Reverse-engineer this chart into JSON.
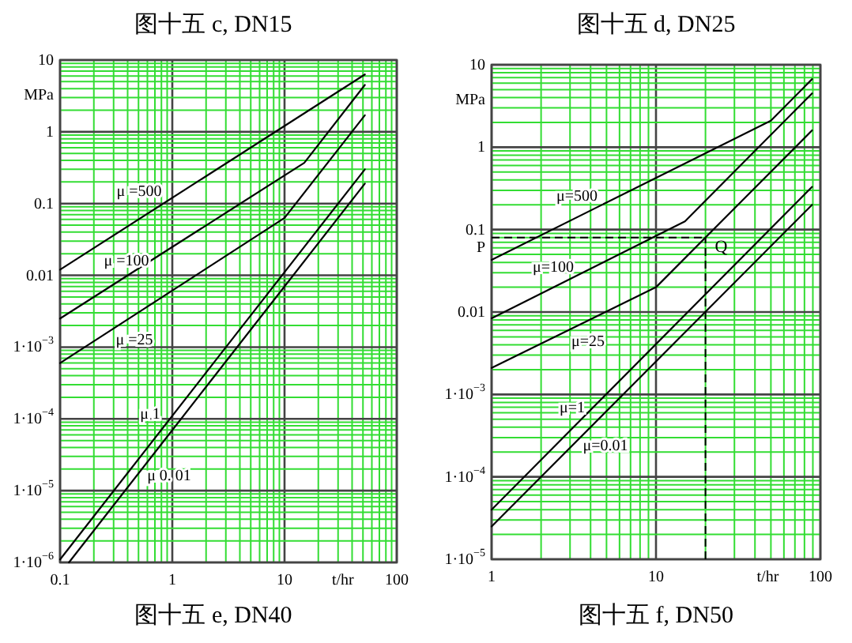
{
  "chart_data": [
    {
      "type": "line",
      "title": "图十五 c, DN15",
      "xlabel": "t/hr",
      "ylabel": "MPa",
      "log": "xy",
      "grid": true,
      "line_style": "solid",
      "xlim": [
        0.1,
        100
      ],
      "ylim": [
        1e-06,
        10
      ],
      "xticks": [
        0.1,
        {
          "value": 0.2,
          "label": null
        },
        {
          "value": 0.3,
          "label": null
        },
        {
          "value": 0.4,
          "label": null
        },
        {
          "value": 0.5,
          "label": null
        },
        {
          "value": 0.6,
          "label": null
        },
        {
          "value": 0.7,
          "label": null
        },
        {
          "value": 0.8,
          "label": null
        },
        {
          "value": 0.9,
          "label": null
        },
        1,
        {
          "value": 2,
          "label": null
        },
        {
          "value": 3,
          "label": null
        },
        {
          "value": 4,
          "label": null
        },
        {
          "value": 5,
          "label": null
        },
        {
          "value": 6,
          "label": null
        },
        {
          "value": 7,
          "label": null
        },
        {
          "value": 8,
          "label": null
        },
        {
          "value": 9,
          "label": null
        },
        10,
        {
          "value": 20,
          "label": null
        },
        {
          "value": 30,
          "label": null
        },
        {
          "value": 40,
          "label": null
        },
        {
          "value": 50,
          "label": null
        },
        {
          "value": 60,
          "label": null
        },
        {
          "value": 70,
          "label": null
        },
        {
          "value": 80,
          "label": null
        },
        {
          "value": 90,
          "label": null
        },
        100
      ],
      "yticks": [
        {
          "value": 1e-06,
          "label": "1·10$^{−6}$"
        },
        {
          "value": 2e-06,
          "label": null
        },
        {
          "value": 3e-06,
          "label": null
        },
        {
          "value": 4e-06,
          "label": null
        },
        {
          "value": 5e-06,
          "label": null
        },
        {
          "value": 6e-06,
          "label": null
        },
        {
          "value": 7e-06,
          "label": null
        },
        {
          "value": 8e-06,
          "label": null
        },
        {
          "value": 9e-06,
          "label": null
        },
        {
          "value": 1e-05,
          "label": "1·10$^{−5}$"
        },
        {
          "value": 2e-05,
          "label": null
        },
        {
          "value": 3e-05,
          "label": null
        },
        {
          "value": 4e-05,
          "label": null
        },
        {
          "value": 5e-05,
          "label": null
        },
        {
          "value": 6e-05,
          "label": null
        },
        {
          "value": 7e-05,
          "label": null
        },
        {
          "value": 8e-05,
          "label": null
        },
        {
          "value": 9e-05,
          "label": null
        },
        {
          "value": 0.0001,
          "label": "1·10$^{−4}$"
        },
        {
          "value": 0.0002,
          "label": null
        },
        {
          "value": 0.0003,
          "label": null
        },
        {
          "value": 0.0004,
          "label": null
        },
        {
          "value": 0.0005,
          "label": null
        },
        {
          "value": 0.0006,
          "label": null
        },
        {
          "value": 0.0007,
          "label": null
        },
        {
          "value": 0.0008,
          "label": null
        },
        {
          "value": 0.0009,
          "label": null
        },
        {
          "value": 0.001,
          "label": "1·10$^{−3}$"
        },
        {
          "value": 0.002,
          "label": null
        },
        {
          "value": 0.003,
          "label": null
        },
        {
          "value": 0.004,
          "label": null
        },
        {
          "value": 0.005,
          "label": null
        },
        {
          "value": 0.006,
          "label": null
        },
        {
          "value": 0.007,
          "label": null
        },
        {
          "value": 0.008,
          "label": null
        },
        {
          "value": 0.009,
          "label": null
        },
        0.01,
        {
          "value": 0.02,
          "label": null
        },
        {
          "value": 0.03,
          "label": null
        },
        {
          "value": 0.04,
          "label": null
        },
        {
          "value": 0.05,
          "label": null
        },
        {
          "value": 0.06,
          "label": null
        },
        {
          "value": 0.07,
          "label": null
        },
        {
          "value": 0.08,
          "label": null
        },
        {
          "value": 0.09,
          "label": null
        },
        0.1,
        {
          "value": 0.2,
          "label": null
        },
        {
          "value": 0.3,
          "label": null
        },
        {
          "value": 0.4,
          "label": null
        },
        {
          "value": 0.5,
          "label": null
        },
        {
          "value": 0.6,
          "label": null
        },
        {
          "value": 0.7,
          "label": null
        },
        {
          "value": 0.8,
          "label": null
        },
        {
          "value": 0.9,
          "label": null
        },
        1,
        {
          "value": 2,
          "label": null
        },
        {
          "value": 3,
          "label": null
        },
        {
          "value": 4,
          "label": null
        },
        {
          "value": 5,
          "label": null
        },
        {
          "value": 6,
          "label": null
        },
        {
          "value": 7,
          "label": null
        },
        {
          "value": 8,
          "label": null
        },
        {
          "value": 9,
          "label": null
        },
        10
      ],
      "series": [
        {
          "name": "μ =500",
          "color": "#000000",
          "x": [
            0.1,
            52
          ],
          "values": [
            0.012,
            6.3
          ]
        },
        {
          "name": "μ =100",
          "color": "#000000",
          "x": [
            0.1,
            15,
            52
          ],
          "values": [
            0.0025,
            0.37,
            4.5
          ]
        },
        {
          "name": "μ =25",
          "color": "#000000",
          "x": [
            0.1,
            10,
            52
          ],
          "values": [
            0.0006,
            0.063,
            1.7
          ]
        },
        {
          "name": "μ 1",
          "color": "#000000",
          "x": [
            0.1,
            52
          ],
          "values": [
            1.1e-06,
            0.3
          ]
        },
        {
          "name": "μ 0. 01",
          "color": "#000000",
          "x": [
            0.12,
            52
          ],
          "values": [
            1e-06,
            0.19
          ]
        }
      ],
      "annotations": [
        "图十五 e, DN40"
      ]
    },
    {
      "type": "line",
      "title": "图十五 d, DN25",
      "xlabel": "t/hr",
      "ylabel": "MPa",
      "log": "xy",
      "grid": true,
      "line_style": "solid",
      "xlim": [
        1,
        100
      ],
      "ylim": [
        1e-05,
        10
      ],
      "xticks": [
        1,
        {
          "value": 2,
          "label": null
        },
        {
          "value": 3,
          "label": null
        },
        {
          "value": 4,
          "label": null
        },
        {
          "value": 5,
          "label": null
        },
        {
          "value": 6,
          "label": null
        },
        {
          "value": 7,
          "label": null
        },
        {
          "value": 8,
          "label": null
        },
        {
          "value": 9,
          "label": null
        },
        10,
        {
          "value": 20,
          "label": null
        },
        {
          "value": 30,
          "label": null
        },
        {
          "value": 40,
          "label": null
        },
        {
          "value": 50,
          "label": null
        },
        {
          "value": 60,
          "label": null
        },
        {
          "value": 70,
          "label": null
        },
        {
          "value": 80,
          "label": null
        },
        {
          "value": 90,
          "label": null
        },
        100
      ],
      "yticks": [
        {
          "value": 1e-05,
          "label": "1·10$^{−5}$"
        },
        {
          "value": 2e-05,
          "label": null
        },
        {
          "value": 3e-05,
          "label": null
        },
        {
          "value": 4e-05,
          "label": null
        },
        {
          "value": 5e-05,
          "label": null
        },
        {
          "value": 6e-05,
          "label": null
        },
        {
          "value": 7e-05,
          "label": null
        },
        {
          "value": 8e-05,
          "label": null
        },
        {
          "value": 9e-05,
          "label": null
        },
        {
          "value": 0.0001,
          "label": "1·10$^{−4}$"
        },
        {
          "value": 0.0002,
          "label": null
        },
        {
          "value": 0.0003,
          "label": null
        },
        {
          "value": 0.0004,
          "label": null
        },
        {
          "value": 0.0005,
          "label": null
        },
        {
          "value": 0.0006,
          "label": null
        },
        {
          "value": 0.0007,
          "label": null
        },
        {
          "value": 0.0008,
          "label": null
        },
        {
          "value": 0.0009,
          "label": null
        },
        {
          "value": 0.001,
          "label": "1·10$^{−3}$"
        },
        {
          "value": 0.002,
          "label": null
        },
        {
          "value": 0.003,
          "label": null
        },
        {
          "value": 0.004,
          "label": null
        },
        {
          "value": 0.005,
          "label": null
        },
        {
          "value": 0.006,
          "label": null
        },
        {
          "value": 0.007,
          "label": null
        },
        {
          "value": 0.008,
          "label": null
        },
        {
          "value": 0.009,
          "label": null
        },
        0.01,
        {
          "value": 0.02,
          "label": null
        },
        {
          "value": 0.03,
          "label": null
        },
        {
          "value": 0.04,
          "label": null
        },
        {
          "value": 0.05,
          "label": null
        },
        {
          "value": 0.06,
          "label": null
        },
        {
          "value": 0.07,
          "label": null
        },
        {
          "value": 0.08,
          "label": null
        },
        {
          "value": 0.09,
          "label": null
        },
        0.1,
        {
          "value": 0.2,
          "label": null
        },
        {
          "value": 0.3,
          "label": null
        },
        {
          "value": 0.4,
          "label": null
        },
        {
          "value": 0.5,
          "label": null
        },
        {
          "value": 0.6,
          "label": null
        },
        {
          "value": 0.7,
          "label": null
        },
        {
          "value": 0.8,
          "label": null
        },
        {
          "value": 0.9,
          "label": null
        },
        1,
        {
          "value": 2,
          "label": null
        },
        {
          "value": 3,
          "label": null
        },
        {
          "value": 4,
          "label": null
        },
        {
          "value": 5,
          "label": null
        },
        {
          "value": 6,
          "label": null
        },
        {
          "value": 7,
          "label": null
        },
        {
          "value": 8,
          "label": null
        },
        {
          "value": 9,
          "label": null
        },
        10
      ],
      "series": [
        {
          "name": "μ=500",
          "color": "#000000",
          "x": [
            1,
            50,
            89
          ],
          "values": [
            0.043,
            2.1,
            6.7
          ]
        },
        {
          "name": "μ=100",
          "color": "#000000",
          "x": [
            1,
            15,
            89
          ],
          "values": [
            0.0084,
            0.126,
            4.5
          ]
        },
        {
          "name": "μ=25",
          "color": "#000000",
          "x": [
            1,
            10,
            89
          ],
          "values": [
            0.0021,
            0.02,
            1.6
          ]
        },
        {
          "name": "μ=1",
          "color": "#000000",
          "x": [
            1,
            89
          ],
          "values": [
            4e-05,
            0.33
          ]
        },
        {
          "name": "μ=0.01",
          "color": "#000000",
          "x": [
            1,
            89
          ],
          "values": [
            2.5e-05,
            0.2
          ]
        }
      ],
      "ref_lines": [
        {
          "axis": "y",
          "value": 0.08,
          "label": "P",
          "line_style": "dashed"
        },
        {
          "axis": "x",
          "value": 20,
          "label": "Q",
          "line_style": "dashed"
        }
      ],
      "annotations": [
        "图十五 f, DN50"
      ]
    }
  ]
}
